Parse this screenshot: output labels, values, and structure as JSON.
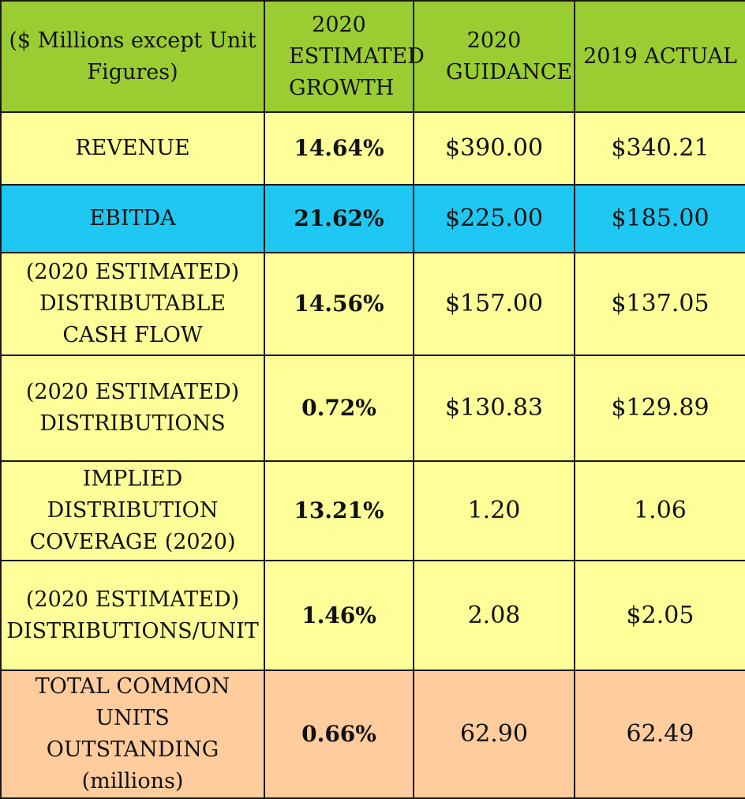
{
  "header": {
    "col_label": "($ Millions except Unit Figures)",
    "col_growth": "2020 ESTIMATED GROWTH",
    "col_guidance": "2020 GUIDANCE",
    "col_actual": "2019 ACTUAL"
  },
  "rows": [
    {
      "metric": "REVENUE",
      "growth": "14.64%",
      "guidance": "$390.00",
      "actual": "$340.21"
    },
    {
      "metric": "EBITDA",
      "growth": "21.62%",
      "guidance": "$225.00",
      "actual": "$185.00"
    },
    {
      "metric": "(2020 ESTIMATED) DISTRIBUTABLE CASH FLOW",
      "growth": "14.56%",
      "guidance": "$157.00",
      "actual": "$137.05"
    },
    {
      "metric": "(2020 ESTIMATED) DISTRIBUTIONS",
      "growth": "0.72%",
      "guidance": "$130.83",
      "actual": "$129.89"
    },
    {
      "metric": "IMPLIED DISTRIBUTION COVERAGE (2020)",
      "growth": "13.21%",
      "guidance": "1.20",
      "actual": "1.06"
    },
    {
      "metric": "(2020 ESTIMATED) DISTRIBUTIONS/UNIT",
      "growth": "1.46%",
      "guidance": "2.08",
      "actual": "$2.05"
    },
    {
      "metric": "TOTAL COMMON UNITS OUTSTANDING (millions)",
      "growth": "0.66%",
      "guidance": "62.90",
      "actual": "62.49"
    }
  ],
  "colors": {
    "header_green": "#9acd32",
    "row_yellow": "#ffff99",
    "row_blue": "#1ec8f2",
    "row_peach": "#ffcc9e"
  }
}
